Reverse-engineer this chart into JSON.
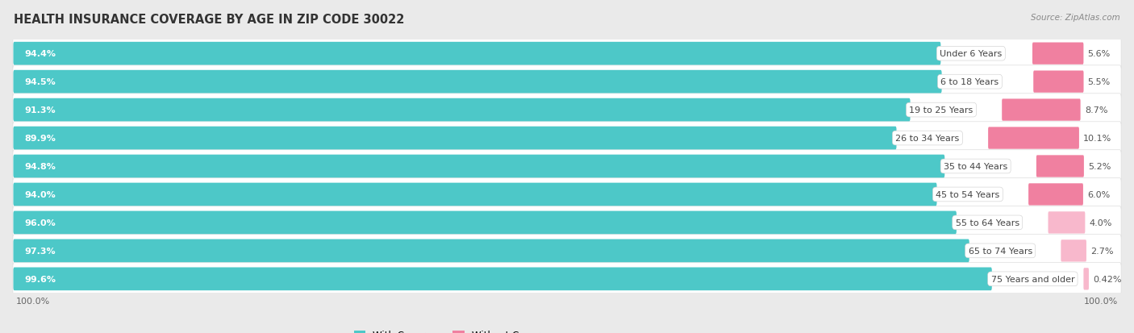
{
  "title": "HEALTH INSURANCE COVERAGE BY AGE IN ZIP CODE 30022",
  "source": "Source: ZipAtlas.com",
  "categories": [
    "Under 6 Years",
    "6 to 18 Years",
    "19 to 25 Years",
    "26 to 34 Years",
    "35 to 44 Years",
    "45 to 54 Years",
    "55 to 64 Years",
    "65 to 74 Years",
    "75 Years and older"
  ],
  "with_coverage": [
    94.4,
    94.5,
    91.3,
    89.9,
    94.8,
    94.0,
    96.0,
    97.3,
    99.6
  ],
  "without_coverage": [
    5.6,
    5.5,
    8.7,
    10.1,
    5.2,
    6.0,
    4.0,
    2.7,
    0.42
  ],
  "with_labels": [
    "94.4%",
    "94.5%",
    "91.3%",
    "89.9%",
    "94.8%",
    "94.0%",
    "96.0%",
    "97.3%",
    "99.6%"
  ],
  "without_labels": [
    "5.6%",
    "5.5%",
    "8.7%",
    "10.1%",
    "5.2%",
    "6.0%",
    "4.0%",
    "2.7%",
    "0.42%"
  ],
  "color_with": "#4DC8C8",
  "color_without": "#F080A0",
  "color_without_light": "#F8B8CC",
  "bg_color": "#eaeaea",
  "bar_bg": "#ffffff",
  "row_bg": "#f5f5f5",
  "title_fontsize": 10.5,
  "label_fontsize": 8,
  "cat_fontsize": 8,
  "legend_fontsize": 8.5,
  "source_fontsize": 7.5,
  "left_label_color": "#ffffff",
  "right_label_color": "#555555",
  "cat_label_color": "#444444"
}
